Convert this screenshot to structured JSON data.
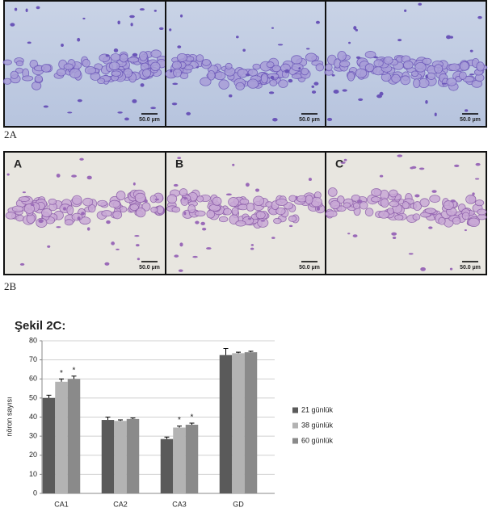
{
  "row_a": {
    "scale_labels": [
      "50.0 µm",
      "50.0 µm",
      "50.0 µm"
    ],
    "caption": "2A"
  },
  "row_b": {
    "panel_labels": [
      "A",
      "B",
      "C"
    ],
    "scale_labels": [
      "50.0 µm",
      "50.0 µm",
      "50.0 µm"
    ],
    "caption": "2B"
  },
  "chart_data": {
    "type": "bar",
    "title": "Şekil 2C:",
    "y_label": "nöron sayısı",
    "categories": [
      "CA1",
      "CA2",
      "CA3",
      "GD"
    ],
    "series": [
      {
        "name": "21 günlük",
        "color": "#5a5a5a",
        "values": [
          50,
          38.5,
          28.5,
          72.5
        ],
        "errors": [
          1.5,
          1.5,
          1,
          3.5
        ],
        "markers": [
          null,
          null,
          null,
          null
        ]
      },
      {
        "name": "38 günlük",
        "color": "#b3b3b3",
        "values": [
          58.5,
          38,
          34.5,
          73.5
        ],
        "errors": [
          1.5,
          0.5,
          0.8,
          0.5
        ],
        "markers": [
          "*",
          null,
          "*",
          null
        ]
      },
      {
        "name": "60 günlük",
        "color": "#8a8a8a",
        "values": [
          60,
          39,
          36,
          74
        ],
        "errors": [
          1.5,
          0.5,
          0.8,
          0.5
        ],
        "markers": [
          "*",
          null,
          "*",
          null
        ]
      }
    ],
    "ylim": [
      0,
      80
    ],
    "yticks": [
      0,
      10,
      20,
      30,
      40,
      50,
      60,
      70,
      80
    ],
    "grid": true,
    "legend": "right"
  }
}
